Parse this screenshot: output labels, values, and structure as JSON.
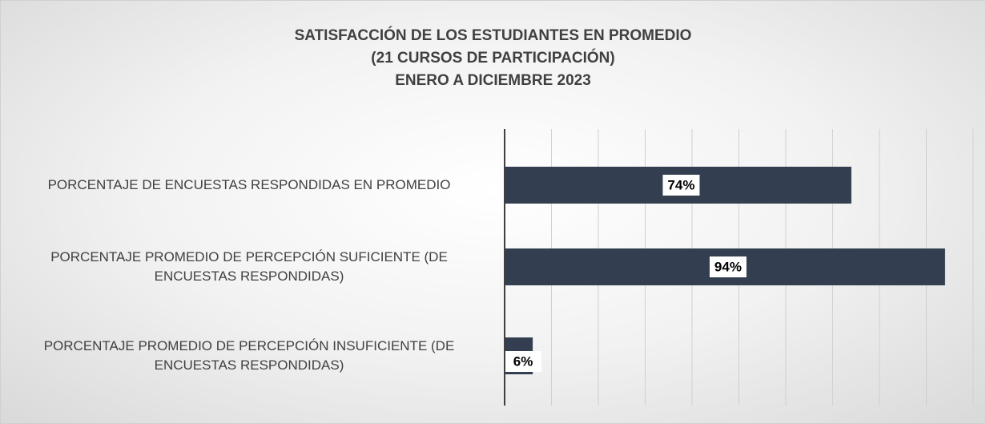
{
  "chart_data": {
    "type": "barh",
    "title": [
      "SATISFACCIÓN DE LOS ESTUDIANTES EN PROMEDIO",
      "(21 CURSOS DE PARTICIPACIÓN)",
      "ENERO A DICIEMBRE 2023"
    ],
    "categories": [
      "PORCENTAJE DE ENCUESTAS RESPONDIDAS EN PROMEDIO",
      "PORCENTAJE PROMEDIO DE PERCEPCIÓN SUFICIENTE (DE ENCUESTAS RESPONDIDAS)",
      "PORCENTAJE PROMEDIO DE PERCEPCIÓN INSUFICIENTE (DE ENCUESTAS RESPONDIDAS)"
    ],
    "values": [
      74,
      94,
      6
    ],
    "value_labels": [
      "74%",
      "94%",
      "6%"
    ],
    "color": "#333f50",
    "xlim": [
      0,
      100
    ],
    "xticks": [
      0,
      10,
      20,
      30,
      40,
      50,
      60,
      70,
      80,
      90,
      100
    ],
    "grid": true
  }
}
